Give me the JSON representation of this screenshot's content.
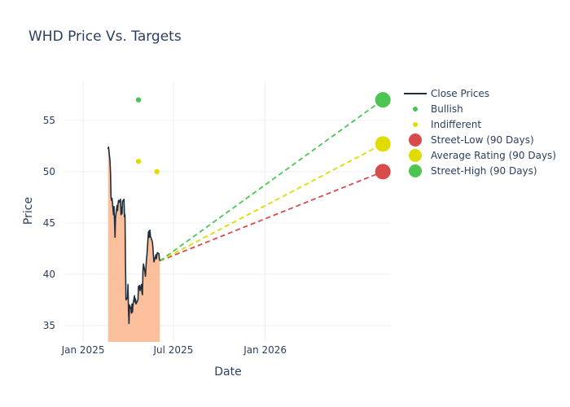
{
  "chart_data": {
    "type": "line",
    "title": "WHD Price Vs. Targets",
    "xlabel": "Date",
    "ylabel": "Price",
    "x_range": [
      "2024-11-26",
      "2026-09-10"
    ],
    "ylim": [
      33.4,
      58.8
    ],
    "x_ticks": [
      {
        "date": "2025-01-01",
        "label": "Jan 2025"
      },
      {
        "date": "2025-07-01",
        "label": "Jul 2025"
      },
      {
        "date": "2026-01-01",
        "label": "Jan 2026"
      }
    ],
    "y_ticks": [
      35,
      40,
      45,
      50,
      55
    ],
    "legend": [
      "Close Prices",
      "Bullish",
      "Indifferent",
      "Street-Low (90 Days)",
      "Average Rating (90 Days)",
      "Street-High (90 Days)"
    ],
    "colors": {
      "line": "#1f2d3d",
      "fill": "#fbbf9b",
      "bullish": "#4cc552",
      "indifferent": "#e0dc00",
      "low": "#d94a4a",
      "average": "#e0dc00",
      "high": "#4cc552",
      "grid": "#ebeff5"
    },
    "close_prices": [
      [
        "2025-02-20",
        52.2
      ],
      [
        "2025-02-21",
        52.4
      ],
      [
        "2025-02-24",
        51.0
      ],
      [
        "2025-02-25",
        49.8
      ],
      [
        "2025-02-26",
        47.5
      ],
      [
        "2025-02-27",
        47.2
      ],
      [
        "2025-02-28",
        47.4
      ],
      [
        "2025-03-03",
        45.8
      ],
      [
        "2025-03-04",
        46.6
      ],
      [
        "2025-03-05",
        45.2
      ],
      [
        "2025-03-06",
        43.6
      ],
      [
        "2025-03-07",
        45.5
      ],
      [
        "2025-03-10",
        46.7
      ],
      [
        "2025-03-11",
        46.2
      ],
      [
        "2025-03-12",
        46.8
      ],
      [
        "2025-03-13",
        47.2
      ],
      [
        "2025-03-14",
        47.0
      ],
      [
        "2025-03-17",
        47.3
      ],
      [
        "2025-03-18",
        45.8
      ],
      [
        "2025-03-19",
        46.5
      ],
      [
        "2025-03-20",
        45.9
      ],
      [
        "2025-03-21",
        47.1
      ],
      [
        "2025-03-24",
        47.3
      ],
      [
        "2025-03-25",
        45.6
      ],
      [
        "2025-03-26",
        45.8
      ],
      [
        "2025-03-27",
        41.0
      ],
      [
        "2025-03-28",
        37.5
      ],
      [
        "2025-03-31",
        37.7
      ],
      [
        "2025-04-01",
        39.0
      ],
      [
        "2025-04-02",
        36.5
      ],
      [
        "2025-04-03",
        35.2
      ],
      [
        "2025-04-04",
        37.0
      ],
      [
        "2025-04-07",
        36.6
      ],
      [
        "2025-04-08",
        36.2
      ],
      [
        "2025-04-09",
        37.1
      ],
      [
        "2025-04-10",
        36.3
      ],
      [
        "2025-04-11",
        37.0
      ],
      [
        "2025-04-14",
        37.9
      ],
      [
        "2025-04-15",
        37.3
      ],
      [
        "2025-04-16",
        37.6
      ],
      [
        "2025-04-17",
        37.1
      ],
      [
        "2025-04-21",
        37.5
      ],
      [
        "2025-04-22",
        38.8
      ],
      [
        "2025-04-23",
        38.6
      ],
      [
        "2025-04-24",
        38.9
      ],
      [
        "2025-04-25",
        38.4
      ],
      [
        "2025-04-28",
        39.0
      ],
      [
        "2025-04-29",
        38.2
      ],
      [
        "2025-04-30",
        38.0
      ],
      [
        "2025-05-01",
        40.4
      ],
      [
        "2025-05-02",
        41.0
      ],
      [
        "2025-05-05",
        40.2
      ],
      [
        "2025-05-06",
        39.8
      ],
      [
        "2025-05-07",
        40.6
      ],
      [
        "2025-05-08",
        41.4
      ],
      [
        "2025-05-09",
        41.9
      ],
      [
        "2025-05-12",
        44.1
      ],
      [
        "2025-05-13",
        44.2
      ],
      [
        "2025-05-14",
        43.6
      ],
      [
        "2025-05-15",
        44.3
      ],
      [
        "2025-05-16",
        43.7
      ],
      [
        "2025-05-19",
        43.3
      ],
      [
        "2025-05-20",
        43.1
      ],
      [
        "2025-05-21",
        42.6
      ],
      [
        "2025-05-22",
        41.8
      ],
      [
        "2025-05-23",
        41.2
      ],
      [
        "2025-05-27",
        41.9
      ],
      [
        "2025-05-28",
        41.5
      ],
      [
        "2025-05-29",
        41.9
      ],
      [
        "2025-05-30",
        42.1
      ],
      [
        "2025-06-02",
        42.0
      ],
      [
        "2025-06-03",
        41.5
      ],
      [
        "2025-06-04",
        41.3
      ]
    ],
    "bullish_points": [
      [
        "2025-04-22",
        57.0
      ]
    ],
    "indifferent_points": [
      [
        "2025-04-22",
        51.0
      ],
      [
        "2025-05-29",
        50.0
      ]
    ],
    "projection_start": [
      "2025-06-04",
      41.3
    ],
    "target_date": "2026-08-25",
    "targets": {
      "low": 50.0,
      "average": 52.7,
      "high": 57.0
    }
  }
}
